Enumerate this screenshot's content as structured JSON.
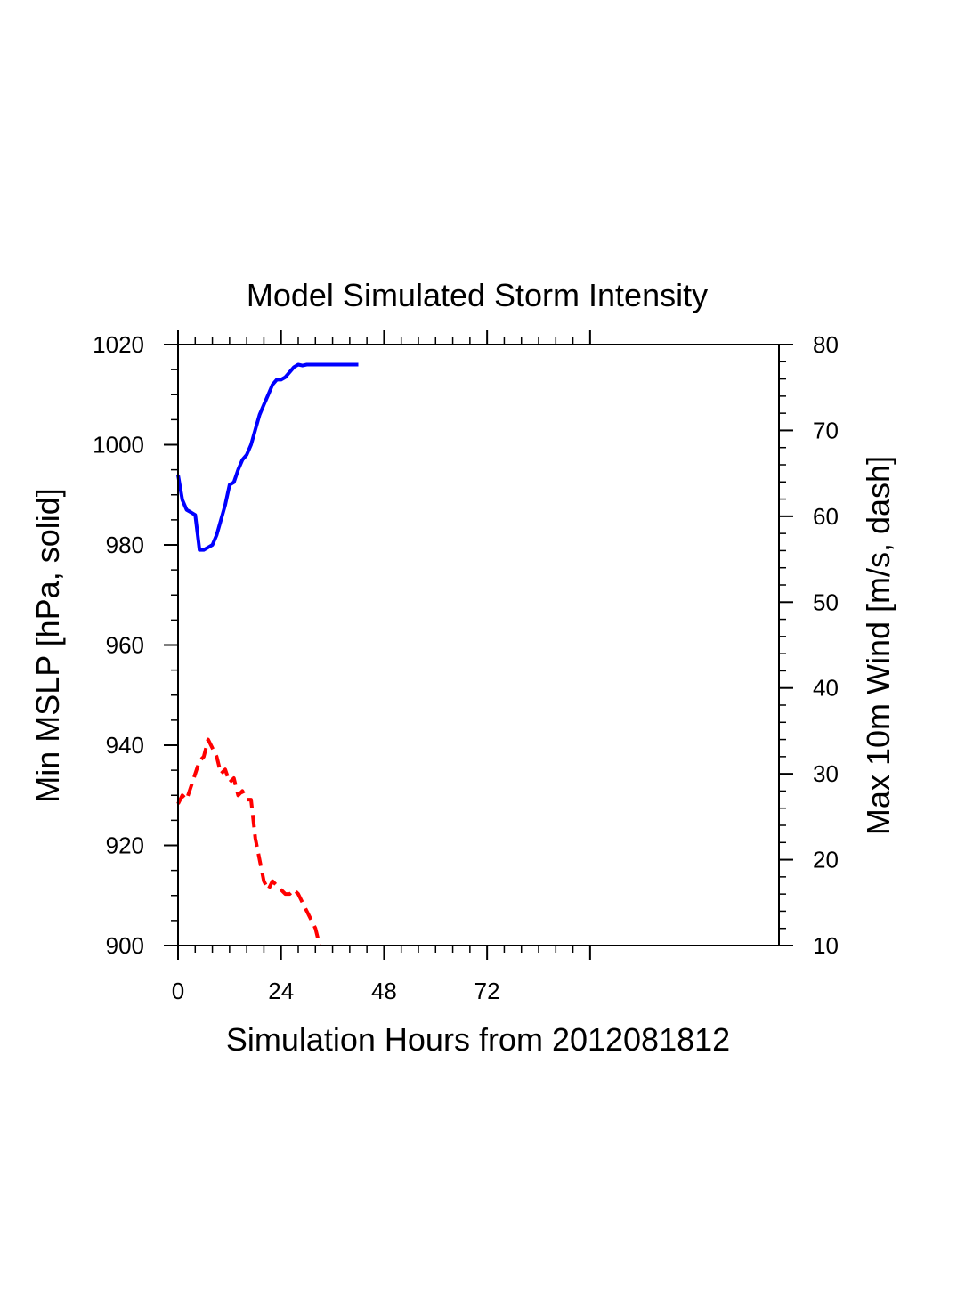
{
  "chart_data": {
    "type": "line",
    "title": "Model Simulated Storm Intensity",
    "xlabel": "Simulation Hours from 2012081812",
    "ylabel_left": "Min MSLP  [hPa, solid]",
    "ylabel_right": "Max 10m Wind  [m/s, dash]",
    "xlim": [
      0,
      140
    ],
    "ylim_left": [
      900,
      1020
    ],
    "ylim_right": [
      10,
      80
    ],
    "x_ticks": [
      "0",
      "24",
      "48",
      "72"
    ],
    "y_ticks_left": [
      "900",
      "920",
      "940",
      "960",
      "980",
      "1000",
      "1020"
    ],
    "y_ticks_right": [
      "10",
      "20",
      "30",
      "40",
      "50",
      "60",
      "70",
      "80"
    ],
    "grid": false,
    "series": [
      {
        "axis": "left",
        "style": "solid",
        "color": "#0000ff",
        "x": [
          0,
          1,
          2,
          3,
          4,
          5,
          6,
          7,
          8,
          9,
          10,
          11,
          12,
          13,
          14,
          15,
          16,
          17,
          18,
          19,
          20,
          21,
          22,
          23,
          24,
          25,
          26,
          27,
          28,
          29,
          30,
          31,
          32,
          33,
          34,
          35,
          36,
          37,
          38,
          39,
          40,
          41,
          42
        ],
        "values": [
          994,
          989,
          987,
          986.5,
          986,
          979,
          979,
          979.5,
          980,
          982,
          985,
          988,
          992,
          992.5,
          995,
          997,
          998,
          1000,
          1003,
          1006,
          1008,
          1010,
          1012,
          1013,
          1013,
          1013.5,
          1014.5,
          1015.5,
          1016,
          1015.8,
          1016,
          1016,
          1016,
          1016,
          1016,
          1016,
          1016,
          1016,
          1016,
          1016,
          1016,
          1016,
          1016
        ]
      },
      {
        "axis": "right",
        "style": "dash",
        "color": "#ff0000",
        "x": [
          0,
          1,
          2,
          3,
          4,
          5,
          6,
          7,
          8,
          9,
          10,
          11,
          12,
          13,
          14,
          15,
          16,
          17,
          18,
          19,
          20,
          21,
          22,
          23,
          24,
          25,
          26,
          27,
          28,
          29,
          30,
          31,
          32,
          33
        ],
        "values": [
          26.5,
          27.5,
          27,
          28.5,
          30,
          31.5,
          32,
          34,
          33,
          32,
          30,
          30.5,
          29,
          29.5,
          27.5,
          28,
          27,
          27,
          22.5,
          20,
          17.5,
          16.5,
          17.5,
          17,
          16.5,
          16,
          16,
          16.5,
          16,
          15,
          14,
          13,
          12,
          10
        ]
      }
    ]
  }
}
